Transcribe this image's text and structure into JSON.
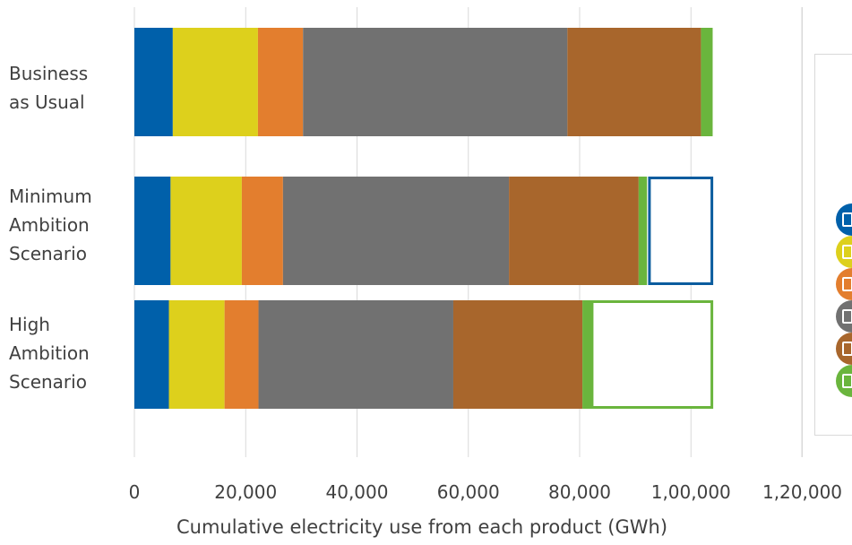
{
  "chart_data": {
    "type": "bar",
    "orientation": "horizontal",
    "stacked": true,
    "title": "",
    "xlabel": "Cumulative electricity use from each product (GWh)",
    "ylabel": "",
    "xlim": [
      0,
      120000
    ],
    "x_ticks": [
      "0",
      "20,000",
      "40,000",
      "60,000",
      "80,000",
      "1,00,000",
      "1,20,000"
    ],
    "categories": [
      [
        "Business",
        "as Usual"
      ],
      [
        "Minimum",
        "Ambition",
        "Scenario"
      ],
      [
        "High",
        "Ambition",
        "Scenario"
      ]
    ],
    "series": [
      {
        "color": "#0060aa",
        "icon": "blue-product-icon",
        "values": [
          6900,
          6500,
          6200
        ]
      },
      {
        "color": "#ddd01c",
        "icon": "yellow-product-icon",
        "values": [
          15300,
          12800,
          10000
        ]
      },
      {
        "color": "#e37e2e",
        "icon": "orange-product-icon",
        "values": [
          8100,
          7400,
          6100
        ]
      },
      {
        "color": "#717171",
        "icon": "grey-product-icon",
        "values": [
          47500,
          40600,
          35000
        ]
      },
      {
        "color": "#a8662c",
        "icon": "brown-product-icon",
        "values": [
          24000,
          23300,
          23200
        ]
      },
      {
        "color": "#6ab53d",
        "icon": "green-product-icon",
        "values": [
          2100,
          1500,
          1800
        ]
      }
    ],
    "savings_boxes": [
      {
        "category_index": 1,
        "from": 92300,
        "to": 104000,
        "color": "#0b5c9e"
      },
      {
        "category_index": 2,
        "from": 82000,
        "to": 104000,
        "color": "#6ab53d"
      }
    ],
    "grid": true,
    "legend": "right (partially visible, icons only)"
  }
}
